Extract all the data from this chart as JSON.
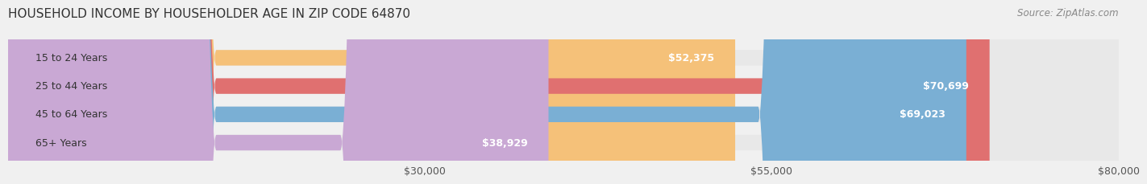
{
  "title": "HOUSEHOLD INCOME BY HOUSEHOLDER AGE IN ZIP CODE 64870",
  "source": "Source: ZipAtlas.com",
  "categories": [
    "15 to 24 Years",
    "25 to 44 Years",
    "45 to 64 Years",
    "65+ Years"
  ],
  "values": [
    52375,
    70699,
    69023,
    38929
  ],
  "bar_colors": [
    "#f5c179",
    "#e07070",
    "#7aafd4",
    "#c9a8d4"
  ],
  "bar_labels": [
    "$52,375",
    "$70,699",
    "$69,023",
    "$38,929"
  ],
  "xmin": 0,
  "xmax": 80000,
  "xticks": [
    30000,
    55000,
    80000
  ],
  "xtick_labels": [
    "$30,000",
    "$55,000",
    "$80,000"
  ],
  "background_color": "#f0f0f0",
  "bar_bg_color": "#e8e8e8",
  "title_fontsize": 11,
  "source_fontsize": 8.5,
  "label_fontsize": 9,
  "bar_height": 0.55,
  "bar_edge_color": "none"
}
